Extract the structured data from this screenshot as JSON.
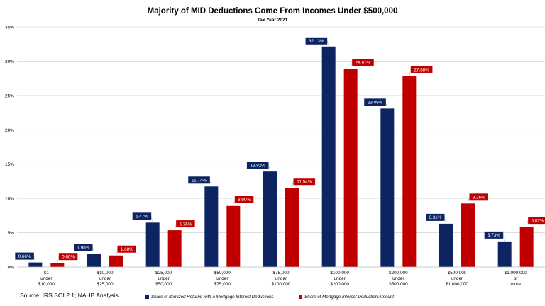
{
  "chart_data": {
    "type": "bar",
    "title": "Majority of MID Deductions Come From Incomes Under $500,000",
    "subtitle": "Tax Year 2021",
    "categories": [
      [
        "$1",
        "under",
        "$10,000"
      ],
      [
        "$10,000",
        "under",
        "$25,000"
      ],
      [
        "$25,000",
        "under",
        "$50,000"
      ],
      [
        "$50,000",
        "under",
        "$75,000"
      ],
      [
        "$75,000",
        "under",
        "$100,000"
      ],
      [
        "$100,000",
        "under",
        "$200,000"
      ],
      [
        "$200,000",
        "under",
        "$500,000"
      ],
      [
        "$500,000",
        "under",
        "$1,000,000"
      ],
      [
        "$1,000,000",
        "or",
        "more"
      ]
    ],
    "series": [
      {
        "name": "Share of Itemized Returns with a Mortgage Interest Deductions",
        "color": "#0c2461",
        "values": [
          0.66,
          1.95,
          6.47,
          11.74,
          13.92,
          32.13,
          23.09,
          6.31,
          3.73
        ],
        "labels": [
          "0.66%",
          "1.95%",
          "6.47%",
          "11.74%",
          "13.92%",
          "32.13%",
          "23.09%",
          "6.31%",
          "3.73%"
        ]
      },
      {
        "name": "Share of Mortgage Interest Deduction Amount",
        "color": "#c00000",
        "values": [
          0.6,
          1.68,
          5.36,
          8.9,
          11.54,
          28.91,
          27.88,
          9.26,
          5.87
        ],
        "labels": [
          "0.60%",
          "1.68%",
          "5.36%",
          "8.90%",
          "11.54%",
          "28.91%",
          "27.88%",
          "9.26%",
          "5.87%"
        ]
      }
    ],
    "ylim": [
      0,
      35
    ],
    "yticks": [
      0,
      5,
      10,
      15,
      20,
      25,
      30,
      35
    ],
    "ytick_labels": [
      "0%",
      "5%",
      "10%",
      "15%",
      "20%",
      "25%",
      "30%",
      "35%"
    ],
    "grid": true,
    "legend_position": "bottom"
  },
  "source": "Source: IRS SOI 2.1; NAHB Analysis"
}
